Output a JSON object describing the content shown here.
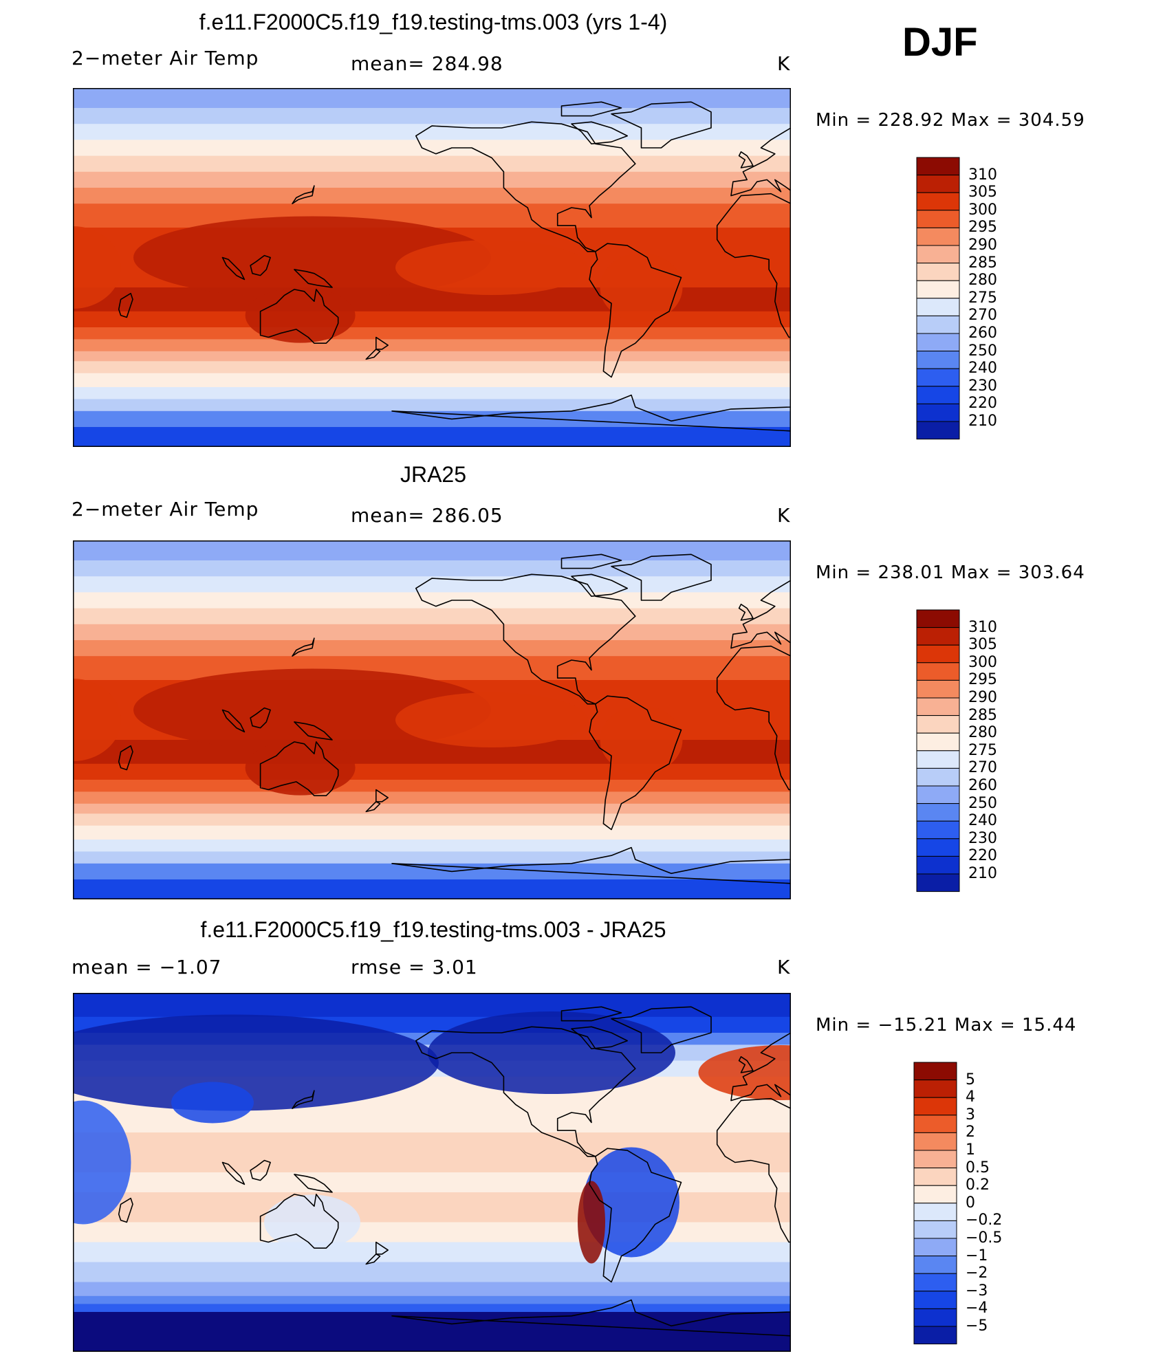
{
  "season": "DJF",
  "scale_colors": [
    "#0b0b7e",
    "#0a1ea6",
    "#0d31cf",
    "#1646e6",
    "#2d5ef0",
    "#5a86f2",
    "#8eaaf6",
    "#b8cdf8",
    "#dce8fb",
    "#fdeee2",
    "#fbd5bf",
    "#f8b194",
    "#f48a5f",
    "#ec5c2a",
    "#dc3608",
    "#bb2004",
    "#8c0b02"
  ],
  "panels": [
    {
      "title": "f.e11.F2000C5.f19_f19.testing-tms.003 (yrs 1-4)",
      "left_label": "2−meter Air Temp",
      "center_label": "mean=  284.98",
      "units": "K",
      "minmax": "Min  =  228.92  Max  =  304.59",
      "kind": "abs",
      "colorbar_labels": [
        "310",
        "305",
        "300",
        "295",
        "290",
        "285",
        "280",
        "275",
        "270",
        "260",
        "250",
        "240",
        "230",
        "220",
        "210"
      ]
    },
    {
      "title": "JRA25",
      "left_label": "2−meter Air Temp",
      "center_label": "mean=  286.05",
      "units": "K",
      "minmax": "Min  =  238.01  Max  =  303.64",
      "kind": "abs",
      "colorbar_labels": [
        "310",
        "305",
        "300",
        "295",
        "290",
        "285",
        "280",
        "275",
        "270",
        "260",
        "250",
        "240",
        "230",
        "220",
        "210"
      ]
    },
    {
      "title": "f.e11.F2000C5.f19_f19.testing-tms.003 - JRA25",
      "left_label": "mean  =    −1.07",
      "center_label": "rmse  =     3.01",
      "units": "K",
      "minmax": "Min  =  −15.21  Max  =    15.44",
      "kind": "diff",
      "colorbar_labels": [
        "5",
        "4",
        "3",
        "2",
        "1",
        "0.5",
        "0.2",
        "0",
        "−0.2",
        "−0.5",
        "−1",
        "−2",
        "−3",
        "−4",
        "−5"
      ]
    }
  ]
}
